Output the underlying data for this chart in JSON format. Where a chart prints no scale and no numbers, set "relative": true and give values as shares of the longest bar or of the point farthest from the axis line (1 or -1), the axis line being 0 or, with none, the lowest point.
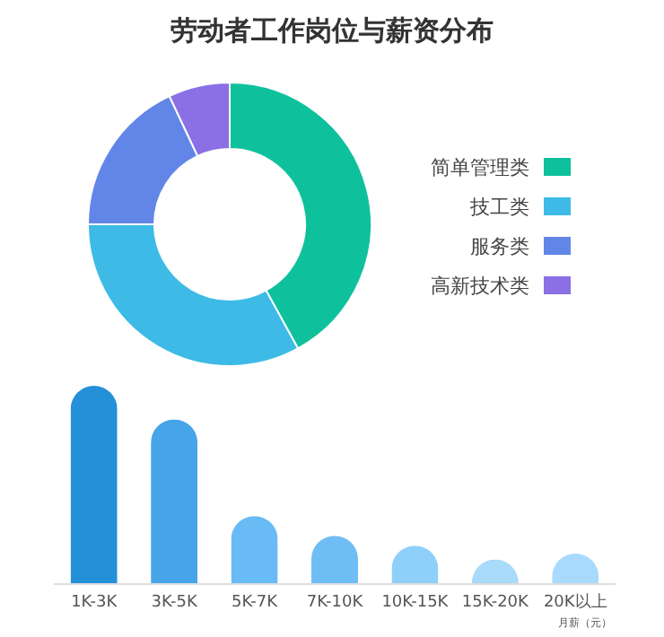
{
  "chart_data": [
    {
      "type": "donut",
      "title": "劳动者工作岗位与薪资分布",
      "categories": [
        "简单管理类",
        "技工类",
        "服务类",
        "高新技术类"
      ],
      "values": [
        42,
        33,
        18,
        7
      ],
      "colors": [
        "#0ec19c",
        "#3dbbe6",
        "#6286e8",
        "#8a6fe5"
      ],
      "legend": "right"
    },
    {
      "type": "bar",
      "relative": true,
      "xlabel": "月薪（元）",
      "categories": [
        "1K-3K",
        "3K-5K",
        "5K-7K",
        "7K-10K",
        "10K-15K",
        "15K-20K",
        "20K以上"
      ],
      "values": [
        1,
        0.83,
        0.34,
        0.24,
        0.19,
        0.12,
        0.15
      ],
      "colors": [
        "#2490d8",
        "#45a5e8",
        "#69bbf5",
        "#6fbdf5",
        "#8fd0fa",
        "#a8daf9",
        "#a8dafd"
      ]
    }
  ]
}
